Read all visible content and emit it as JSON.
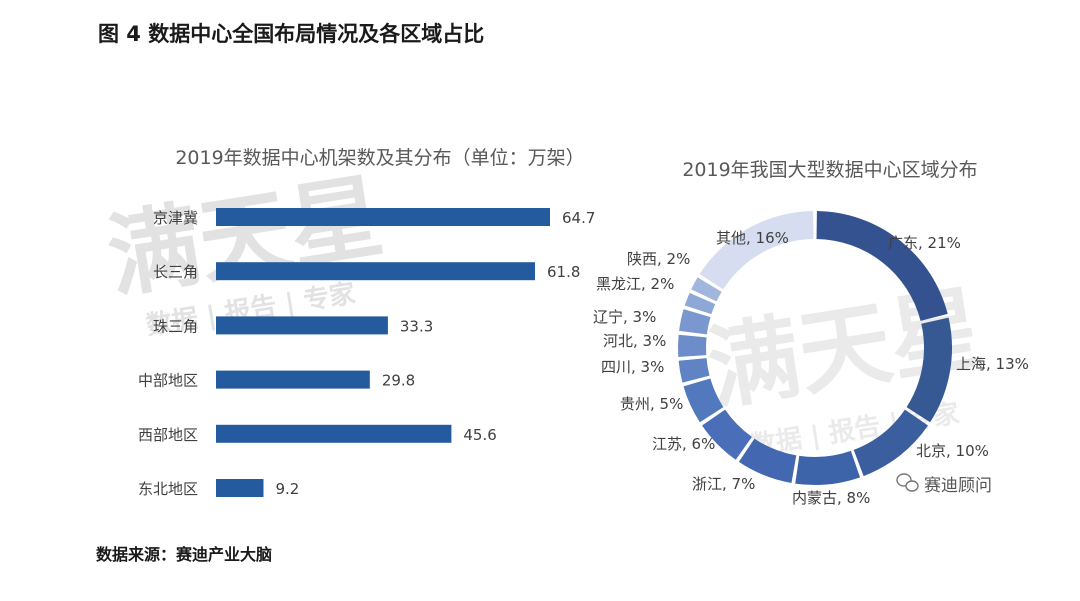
{
  "page": {
    "figure_title": "图 4 数据中心全国布局情况及各区域占比",
    "source": "数据来源：赛迪产业大脑"
  },
  "watermark": {
    "main": "满天星",
    "sub": "数据 | 报告 | 专家",
    "wechat": "赛迪顾问"
  },
  "chart_data": [
    {
      "type": "bar",
      "orientation": "horizontal",
      "title": "2019年数据中心机架数及其分布（单位：万架）",
      "categories": [
        "京津冀",
        "长三角",
        "珠三角",
        "中部地区",
        "西部地区",
        "东北地区"
      ],
      "values": [
        64.7,
        61.8,
        33.3,
        29.8,
        45.6,
        9.2
      ],
      "value_labels": [
        "64.7",
        "61.8",
        "33.3",
        "29.8",
        "45.6",
        "9.2"
      ],
      "xlim": [
        0,
        70
      ],
      "color": "#245b9e",
      "grid": false
    },
    {
      "type": "pie",
      "style": "donut",
      "title": "2019年我国大型数据中心区域分布",
      "labels": [
        "广东",
        "上海",
        "北京",
        "内蒙古",
        "浙江",
        "江苏",
        "贵州",
        "四川",
        "河北",
        "辽宁",
        "黑龙江",
        "陕西",
        "其他"
      ],
      "values": [
        21,
        13,
        10,
        8,
        7,
        6,
        5,
        3,
        3,
        3,
        2,
        2,
        16
      ],
      "value_labels": [
        "广东, 21%",
        "上海, 13%",
        "北京, 10%",
        "内蒙古, 8%",
        "浙江, 7%",
        "江苏, 6%",
        "贵州, 5%",
        "四川, 3%",
        "河北, 3%",
        "辽宁, 3%",
        "黑龙江, 2%",
        "陕西, 2%",
        "其他, 16%"
      ],
      "colors": [
        "#34528f",
        "#365893",
        "#3b5e9e",
        "#3d63a8",
        "#4368b1",
        "#4a6fb8",
        "#5278bd",
        "#5f83c3",
        "#6c8dc9",
        "#7a98cf",
        "#8da7d6",
        "#a0b6dd",
        "#d6ddf0"
      ]
    }
  ]
}
